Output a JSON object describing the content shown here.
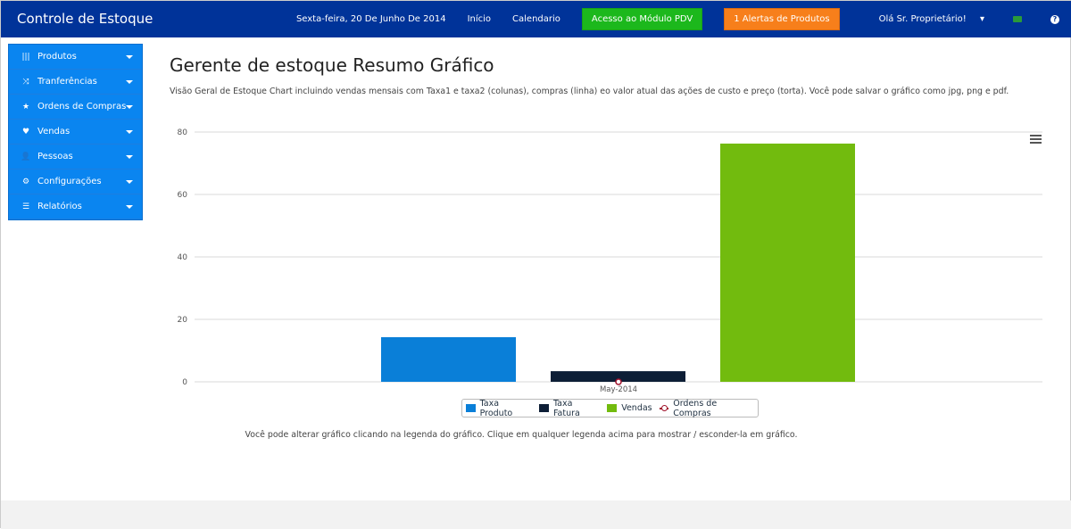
{
  "header": {
    "brand": "Controle de Estoque",
    "date": "Sexta-feira, 20 De Junho De 2014",
    "nav_inicio": "Início",
    "nav_calendario": "Calendario",
    "pdv_button": "Acesso ao Módulo PDV",
    "alerts_button": "1 Alertas de Produtos",
    "user_menu": "Olá Sr. Proprietário!",
    "help": "?"
  },
  "sidebar": {
    "items": [
      {
        "label": "Produtos",
        "icon": "barcode-icon",
        "glyph": "|||"
      },
      {
        "label": "Tranferências",
        "icon": "random-icon",
        "glyph": "⤨"
      },
      {
        "label": "Ordens de Compras",
        "icon": "star-icon",
        "glyph": "★"
      },
      {
        "label": "Vendas",
        "icon": "heart-icon",
        "glyph": "♥"
      },
      {
        "label": "Pessoas",
        "icon": "user-icon",
        "glyph": "👤"
      },
      {
        "label": "Configurações",
        "icon": "cog-icon",
        "glyph": "⚙"
      },
      {
        "label": "Relatórios",
        "icon": "list-icon",
        "glyph": "☰"
      }
    ]
  },
  "main": {
    "title": "Gerente de estoque Resumo Gráfico",
    "description": "Visão Geral de Estoque Chart incluindo vendas mensais com Taxa1 e taxa2 (colunas), compras (linha) eo valor atual das ações de custo e preço (torta). Você pode salvar o gráfico como jpg, png e pdf.",
    "note": "Você pode alterar gráfico clicando na legenda do gráfico. Clique em qualquer legenda acima para mostrar / esconder-la em gráfico."
  },
  "colors": {
    "navbar": "#003399",
    "sidebar": "#0a85f0",
    "pdv": "#1cb81c",
    "alerts": "#f77f1b"
  },
  "chart_data": {
    "type": "bar",
    "categories": [
      "May-2014"
    ],
    "ylim": [
      0,
      80
    ],
    "yticks": [
      "0",
      "20",
      "40",
      "60",
      "80"
    ],
    "grid": true,
    "legend_placement": "bottom",
    "series": [
      {
        "name": "Taxa Produto",
        "type": "bar",
        "values": [
          14.3
        ],
        "color": "#0a7fd8"
      },
      {
        "name": "Taxa Fatura",
        "type": "bar",
        "values": [
          3.4
        ],
        "color": "#0d1e36"
      },
      {
        "name": "Vendas",
        "type": "bar",
        "values": [
          76.3
        ],
        "color": "#72bb0e"
      },
      {
        "name": "Ordens de Compras",
        "type": "line",
        "values": [
          0
        ],
        "color": "#a0102a"
      }
    ]
  }
}
